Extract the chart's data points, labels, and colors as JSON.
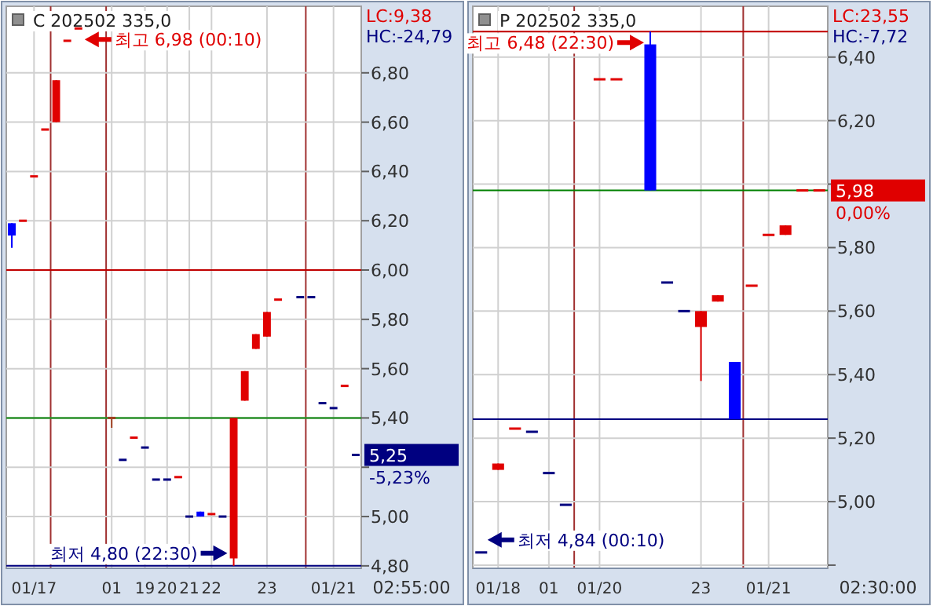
{
  "chart_data": [
    {
      "type": "candlestick",
      "title": "C 202502 335,0",
      "categories": [
        null,
        null,
        "01/17",
        null,
        null,
        null,
        null,
        null,
        null,
        "01",
        null,
        null,
        "19",
        null,
        "20",
        null,
        "21",
        null,
        "22",
        null,
        null,
        null,
        null,
        "23",
        null,
        null,
        null,
        null,
        null,
        "01/21",
        null,
        null
      ],
      "ohlc": [
        [
          6.19,
          6.19,
          6.09,
          6.14
        ],
        [
          6.2,
          6.2,
          6.2,
          6.2
        ],
        [
          6.38,
          6.38,
          6.38,
          6.38
        ],
        [
          6.57,
          6.57,
          6.57,
          6.57
        ],
        [
          6.6,
          6.77,
          6.6,
          6.77
        ],
        [
          6.93,
          6.93,
          6.93,
          6.93
        ],
        [
          6.98,
          6.98,
          6.98,
          6.98
        ],
        null,
        null,
        [
          5.4,
          5.4,
          5.36,
          5.4
        ],
        [
          5.23,
          5.23,
          5.23,
          5.23
        ],
        [
          5.32,
          5.32,
          5.32,
          5.32
        ],
        [
          5.28,
          5.28,
          5.28,
          5.28
        ],
        [
          5.15,
          5.15,
          5.15,
          5.15
        ],
        [
          5.15,
          5.15,
          5.15,
          5.15
        ],
        [
          5.16,
          5.16,
          5.16,
          5.16
        ],
        [
          5.0,
          5.0,
          5.0,
          5.0
        ],
        [
          5.02,
          5.02,
          5.0,
          5.0
        ],
        [
          5.01,
          5.01,
          5.01,
          5.01
        ],
        [
          5.0,
          5.0,
          5.0,
          5.0
        ],
        [
          4.83,
          5.4,
          4.8,
          5.4
        ],
        [
          5.47,
          5.59,
          5.47,
          5.59
        ],
        [
          5.68,
          5.74,
          5.68,
          5.74
        ],
        [
          5.73,
          5.83,
          5.73,
          5.83
        ],
        [
          5.88,
          5.88,
          5.88,
          5.88
        ],
        null,
        [
          5.89,
          5.89,
          5.89,
          5.89
        ],
        [
          5.89,
          5.89,
          5.89,
          5.89
        ],
        [
          5.46,
          5.46,
          5.46,
          5.46
        ],
        [
          5.44,
          5.44,
          5.44,
          5.44
        ],
        [
          5.53,
          5.53,
          5.53,
          5.53
        ],
        [
          5.25,
          5.25,
          5.25,
          5.25
        ]
      ],
      "colors": [
        "#0000ff",
        "#e00000",
        "#e00000",
        "#e00000",
        "#e00000",
        "#e00000",
        "#e00000",
        null,
        null,
        "#a04020",
        "#000080",
        "#e00000",
        "#000080",
        "#000080",
        "#000080",
        "#e00000",
        "#000080",
        "#0000ff",
        "#e00000",
        "#000080",
        "#e00000",
        "#e00000",
        "#e00000",
        "#e00000",
        "#e00000",
        null,
        "#000080",
        "#000080",
        "#000080",
        "#000080",
        "#e00000",
        "#000080"
      ],
      "ylim": [
        4.79,
        7.07
      ],
      "yticks": [
        {
          "value": 4.8,
          "label": "4,80"
        },
        {
          "value": 5.0,
          "label": "5,00"
        },
        {
          "value": 5.2,
          "label": null
        },
        {
          "value": 5.4,
          "label": "5,40"
        },
        {
          "value": 5.6,
          "label": "5,60"
        },
        {
          "value": 5.8,
          "label": "5,80"
        },
        {
          "value": 6.0,
          "label": "6,00"
        },
        {
          "value": 6.2,
          "label": "6,20"
        },
        {
          "value": 6.4,
          "label": "6,40"
        },
        {
          "value": 6.6,
          "label": "6,60"
        },
        {
          "value": 6.8,
          "label": "6,80"
        }
      ],
      "grid": true,
      "ref_lines": [
        {
          "axis": "y",
          "value": 6.0,
          "color": "#c00000"
        },
        {
          "axis": "y",
          "value": 5.4,
          "color": "#008000"
        },
        {
          "axis": "y",
          "value": 4.8,
          "color": "#000080"
        }
      ],
      "annotations": [
        "최고 6,98 (00:10)",
        "최저 4,80 (22:30)",
        "LC:9,38",
        "HC:-24,79",
        "5,25",
        "-5,23%",
        "02:55:00"
      ]
    },
    {
      "type": "candlestick",
      "title": "P 202502 335,0",
      "categories": [
        null,
        "01/18",
        null,
        null,
        "01",
        null,
        null,
        "01/20",
        null,
        null,
        null,
        null,
        null,
        "23",
        null,
        null,
        null,
        "01/21",
        null,
        null,
        null
      ],
      "ohlc": [
        [
          4.84,
          4.84,
          4.84,
          4.84
        ],
        [
          5.1,
          5.12,
          5.1,
          5.12
        ],
        [
          5.23,
          5.23,
          5.23,
          5.23
        ],
        [
          5.22,
          5.22,
          5.22,
          5.22
        ],
        [
          5.09,
          5.09,
          5.09,
          5.09
        ],
        [
          4.99,
          4.99,
          4.99,
          4.99
        ],
        null,
        [
          6.33,
          6.33,
          6.33,
          6.33
        ],
        [
          6.33,
          6.33,
          6.33,
          6.33
        ],
        null,
        [
          6.44,
          6.48,
          5.98,
          5.98
        ],
        [
          5.69,
          5.69,
          5.69,
          5.69
        ],
        [
          5.6,
          5.6,
          5.6,
          5.6
        ],
        [
          5.55,
          5.6,
          5.38,
          5.6
        ],
        [
          5.63,
          5.65,
          5.63,
          5.65
        ],
        [
          5.44,
          5.44,
          5.26,
          5.26
        ],
        [
          5.68,
          5.68,
          5.68,
          5.68
        ],
        [
          5.84,
          5.84,
          5.84,
          5.84
        ],
        [
          5.84,
          5.87,
          5.84,
          5.87
        ],
        [
          5.98,
          5.98,
          5.98,
          5.98
        ],
        [
          5.98,
          5.98,
          5.98,
          5.98
        ]
      ],
      "colors": [
        "#000080",
        "#e00000",
        "#e00000",
        "#000080",
        "#000080",
        "#000080",
        null,
        "#e00000",
        "#e00000",
        null,
        "#0000ff",
        "#000080",
        "#000080",
        "#e00000",
        "#e00000",
        "#0000ff",
        "#e00000",
        "#e00000",
        "#e00000",
        "#e00000",
        "#e00000"
      ],
      "ylim": [
        4.79,
        6.56
      ],
      "yticks": [
        {
          "value": 4.8,
          "label": null
        },
        {
          "value": 5.0,
          "label": "5,00"
        },
        {
          "value": 5.2,
          "label": "5,20"
        },
        {
          "value": 5.4,
          "label": "5,40"
        },
        {
          "value": 5.6,
          "label": "5,60"
        },
        {
          "value": 5.8,
          "label": "5,80"
        },
        {
          "value": 6.0,
          "label": null
        },
        {
          "value": 6.2,
          "label": "6,20"
        },
        {
          "value": 6.4,
          "label": "6,40"
        }
      ],
      "grid": true,
      "ref_lines": [
        {
          "axis": "y",
          "value": 6.48,
          "color": "#c00000"
        },
        {
          "axis": "y",
          "value": 5.98,
          "color": "#008000"
        },
        {
          "axis": "y",
          "value": 5.26,
          "color": "#000080"
        }
      ],
      "annotations": [
        "최고 6,48 (22:30)",
        "최저 4,84 (00:10)",
        "LC:23,55",
        "HC:-7,72",
        "5,98",
        "0,00%",
        "02:30:00"
      ]
    }
  ]
}
